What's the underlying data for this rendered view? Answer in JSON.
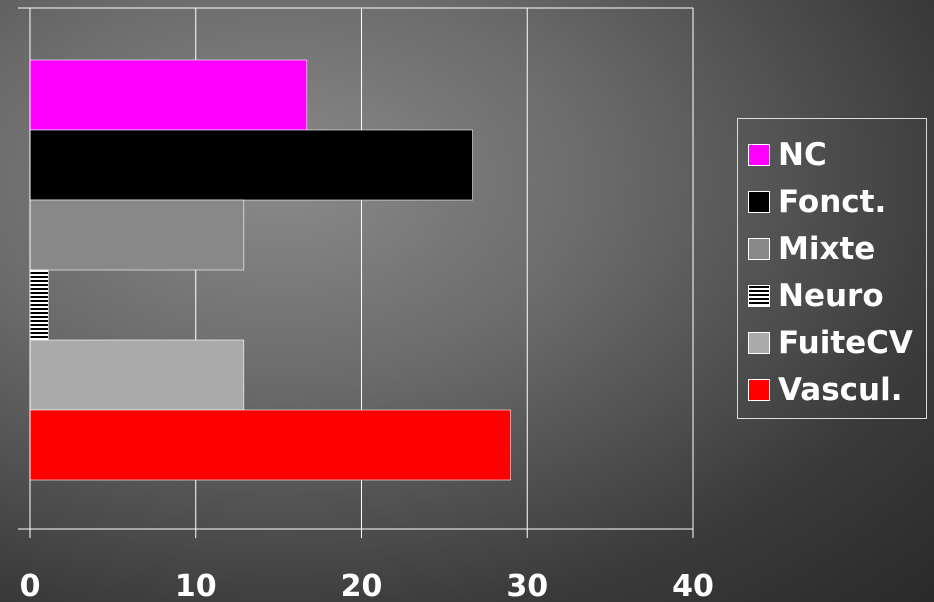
{
  "chart_data": {
    "type": "bar",
    "orientation": "horizontal",
    "categories": [
      "NC",
      "Fonct.",
      "Mixte",
      "Neuro",
      "FuiteCV",
      "Vascul."
    ],
    "values": [
      16.7,
      26.7,
      12.9,
      1.1,
      12.9,
      29.0
    ],
    "colors": [
      "#ff00ff",
      "#000000",
      "#888888",
      "hatch",
      "#aaaaaa",
      "#ff0000"
    ],
    "xlim": [
      0,
      40
    ],
    "xticks": [
      "0",
      "10",
      "20",
      "30",
      "40"
    ],
    "grid": true,
    "legend": {
      "position": "right",
      "entries": [
        {
          "label": "NC",
          "color": "#ff00ff"
        },
        {
          "label": "Fonct.",
          "color": "#000000"
        },
        {
          "label": "Mixte",
          "color": "#888888"
        },
        {
          "label": "Neuro",
          "color": "hatch"
        },
        {
          "label": "FuiteCV",
          "color": "#aaaaaa"
        },
        {
          "label": "Vascul.",
          "color": "#ff0000"
        }
      ]
    },
    "title": "",
    "xlabel": "",
    "ylabel": ""
  }
}
